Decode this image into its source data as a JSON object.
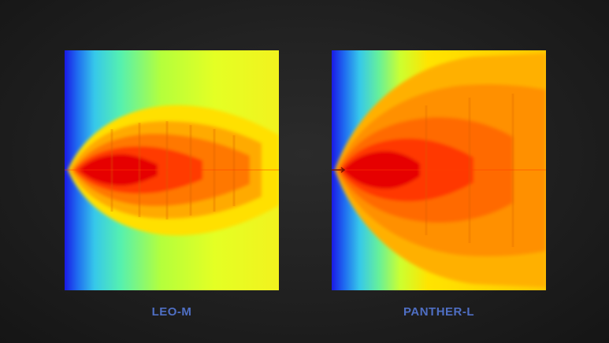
{
  "colors": {
    "label": "#4f6fc4",
    "scale": [
      "#1a1ae6",
      "#1f6cf0",
      "#36c8ea",
      "#55f0b0",
      "#d8ff28",
      "#ffe400",
      "#ffaa00",
      "#ff7400",
      "#ff3400",
      "#e80000"
    ]
  },
  "panels": [
    {
      "label": "LEO-M"
    },
    {
      "label": "PANTHER-L"
    }
  ]
}
